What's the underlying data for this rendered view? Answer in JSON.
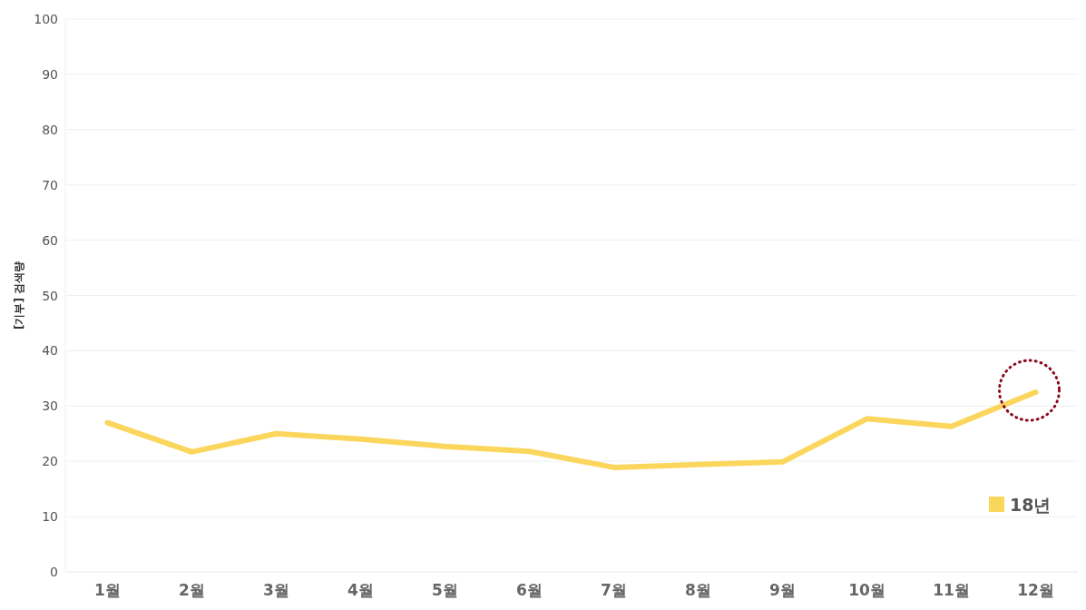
{
  "chart_data": {
    "type": "line",
    "ylabel": "[기부] 검색량",
    "categories": [
      "1월",
      "2월",
      "3월",
      "4월",
      "5월",
      "6월",
      "7월",
      "8월",
      "9월",
      "10월",
      "11월",
      "12월"
    ],
    "series": [
      {
        "name": "18년",
        "color": "#fbd65c",
        "values": [
          27,
          21.7,
          25,
          24,
          22.7,
          21.8,
          18.9,
          19.4,
          19.9,
          27.7,
          26.3,
          32.5
        ]
      }
    ],
    "ylim": [
      0,
      100
    ],
    "yticks": [
      0,
      10,
      20,
      30,
      40,
      50,
      60,
      70,
      80,
      90,
      100
    ],
    "grid": "y",
    "legend": "bottom right",
    "marker": "none",
    "line_style": "solid"
  }
}
